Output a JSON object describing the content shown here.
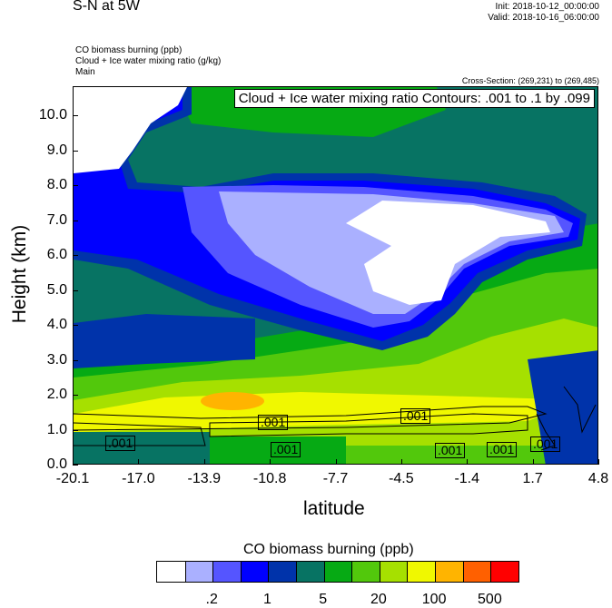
{
  "header": {
    "title": "S-N at 5W",
    "init": "Init: 2018-10-12_00:00:00",
    "valid": "Valid: 2018-10-16_06:00:00",
    "fields": [
      "CO biomass burning   (ppb)",
      "Cloud + Ice water mixing ratio   (g/kg)",
      "Main"
    ],
    "cross_section": "Cross-Section: (269,231) to (269,485)"
  },
  "chart_data": {
    "type": "heatmap",
    "title": "S-N at 5W",
    "xlabel": "latitude",
    "ylabel": "Height (km)",
    "xlim": [
      -20.1,
      4.8
    ],
    "ylim": [
      0,
      10.8
    ],
    "xticks": [
      "-20.1",
      "-17.0",
      "-13.9",
      "-10.8",
      "-7.7",
      "-4.5",
      "-1.4",
      "1.7",
      "4.8"
    ],
    "yticks": [
      "0.0",
      "1.0",
      "2.0",
      "3.0",
      "4.0",
      "5.0",
      "6.0",
      "7.0",
      "8.0",
      "9.0",
      "10.0"
    ],
    "contour_title": "Cloud + Ice water mixing ratio Contours: .001 to .1 by .099",
    "contour_labels": [
      ".001",
      ".001",
      ".001",
      ".001",
      ".001",
      ".001",
      ".001"
    ],
    "colorbar": {
      "title": "CO biomass burning  (ppb)",
      "colors": [
        "#ffffff",
        "#aab0ff",
        "#5555ff",
        "#0000ff",
        "#0033aa",
        "#077363",
        "#06aa14",
        "#52c80c",
        "#a6e000",
        "#f0f800",
        "#ffb400",
        "#ff6000",
        "#ff0000"
      ],
      "labels": [
        ".2",
        "1",
        "5",
        "20",
        "100",
        "500"
      ]
    }
  }
}
